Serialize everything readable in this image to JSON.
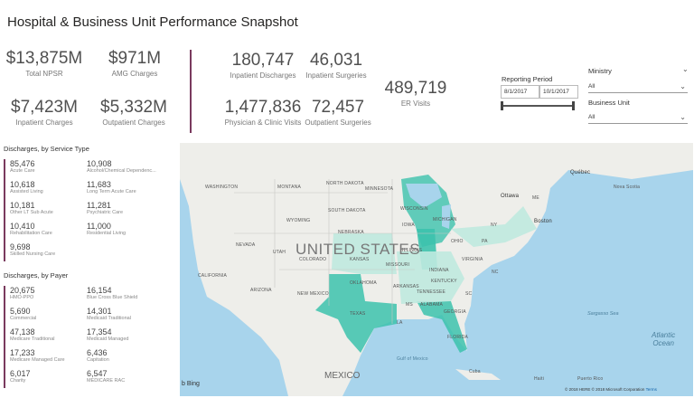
{
  "title": "Hospital & Business Unit Performance Snapshot",
  "kpis_left": [
    {
      "value": "$13,875M",
      "label": "Total NPSR"
    },
    {
      "value": "$971M",
      "label": "AMG Charges"
    },
    {
      "value": "$7,423M",
      "label": "Inpatient Charges"
    },
    {
      "value": "$5,332M",
      "label": "Outpatient Charges"
    }
  ],
  "kpis_mid": [
    {
      "value": "180,747",
      "label": "Inpatient Discharges"
    },
    {
      "value": "46,031",
      "label": "Inpatient Surgeries"
    },
    {
      "value": "1,477,836",
      "label": "Physician & Clinic Visits"
    },
    {
      "value": "72,457",
      "label": "Outpatient Surgeries"
    },
    {
      "value": "489,719",
      "label": "ER Visits"
    }
  ],
  "reporting_period": {
    "label": "Reporting Period",
    "start": "8/1/2017",
    "end": "10/1/2017"
  },
  "ministry": {
    "label": "Ministry",
    "value": "All"
  },
  "business_unit": {
    "label": "Business Unit",
    "value": "All"
  },
  "discharges_service": {
    "title": "Discharges, by Service Type",
    "items": [
      {
        "value": "85,476",
        "label": "Acute Care"
      },
      {
        "value": "10,908",
        "label": "Alcohol/Chemical Dependenc..."
      },
      {
        "value": "10,618",
        "label": "Assisted Living"
      },
      {
        "value": "11,683",
        "label": "Long Term Acute Care"
      },
      {
        "value": "10,181",
        "label": "Other LT Sub Acute"
      },
      {
        "value": "11,281",
        "label": "Psychiatric Care"
      },
      {
        "value": "10,410",
        "label": "Rehabilitation Care"
      },
      {
        "value": "11,000",
        "label": "Residential Living"
      },
      {
        "value": "9,698",
        "label": "Skilled Nursing Care"
      }
    ]
  },
  "discharges_payer": {
    "title": "Discharges, by Payer",
    "items": [
      {
        "value": "20,675",
        "label": "HMO-PPO"
      },
      {
        "value": "16,154",
        "label": "Blue Cross Blue Shield"
      },
      {
        "value": "5,690",
        "label": "Commercial"
      },
      {
        "value": "14,301",
        "label": "Medicaid Traditional"
      },
      {
        "value": "47,138",
        "label": "Medicare Traditional"
      },
      {
        "value": "17,354",
        "label": "Medicaid Managed"
      },
      {
        "value": "17,233",
        "label": "Medicare Managed Care"
      },
      {
        "value": "6,436",
        "label": "Capitation"
      },
      {
        "value": "6,017",
        "label": "Charity"
      },
      {
        "value": "6,547",
        "label": "MEDICARE RAC"
      }
    ]
  },
  "map": {
    "country_label": "UNITED STATES",
    "mexico_label": "MEXICO",
    "ocean_labels": [
      "Atlantic",
      "Ocean"
    ],
    "sea_label": "Sargasso Sea",
    "bing": "Bing",
    "copyright": "© 2018 HERE © 2018 Microsoft Corporation",
    "terms": "Terms",
    "place_labels": [
      "WASHINGTON",
      "MONTANA",
      "NORTH DAKOTA",
      "MINNESOTA",
      "SOUTH DAKOTA",
      "WYOMING",
      "NEBRASKA",
      "IOWA",
      "NEVADA",
      "UTAH",
      "COLORADO",
      "KANSAS",
      "MISSOURI",
      "CALIFORNIA",
      "ARIZONA",
      "NEW MEXICO",
      "OKLAHOMA",
      "TEXAS",
      "ARKANSAS",
      "OHIO",
      "VIRGINIA",
      "ALABAMA",
      "GEORGIA",
      "FLORIDA",
      "WISCONSIN",
      "MICHIGAN",
      "ILLINOIS",
      "INDIANA",
      "KENTUCKY",
      "TENNESSEE",
      "NC",
      "SC",
      "MS",
      "LA",
      "NY",
      "PA",
      "ME",
      "Ottawa",
      "Québec",
      "Boston",
      "Nova Scotia",
      "Cuba",
      "Haiti",
      "Puerto Rico",
      "Gulf of Mexico"
    ],
    "colors": {
      "water": "#a8d4ec",
      "land": "#eeeeea",
      "highlight_dark": "#3cc2ad",
      "highlight_light": "#bfe9df"
    }
  },
  "colors": {
    "accent": "#7a3a5e"
  }
}
